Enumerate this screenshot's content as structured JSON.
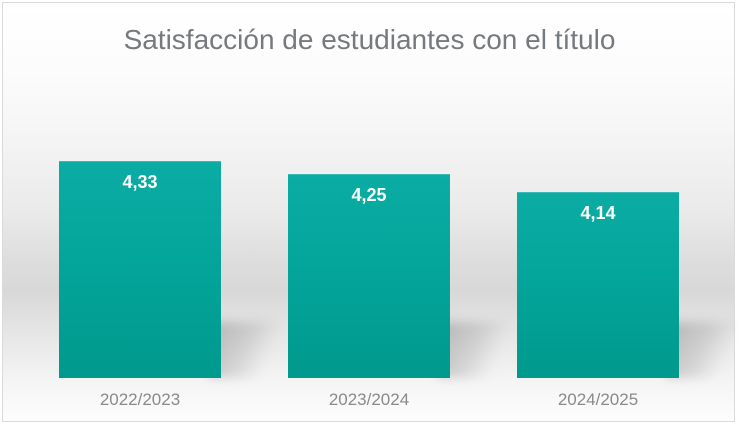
{
  "chart_data": {
    "type": "bar",
    "title": "Satisfacción de estudiantes con el título",
    "categories": [
      "2022/2023",
      "2023/2024",
      "2024/2025"
    ],
    "values": [
      4.33,
      4.25,
      4.14
    ],
    "value_labels": [
      "4,33",
      "4,25",
      "4,14"
    ],
    "xlabel": "",
    "ylabel": "",
    "ylim": [
      3,
      4.5
    ],
    "grid": false,
    "legend": false,
    "axes_hidden": true,
    "decimal_separator": ",",
    "colors": {
      "bar_gradient_top": "#0baca3",
      "bar_gradient_mid": "#04a59b",
      "bar_gradient_bottom": "#00998d",
      "title_text": "#76797e",
      "axis_label_text": "#8a8a8a",
      "value_label_text": "#ffffff",
      "frame_border": "#dadada"
    }
  }
}
